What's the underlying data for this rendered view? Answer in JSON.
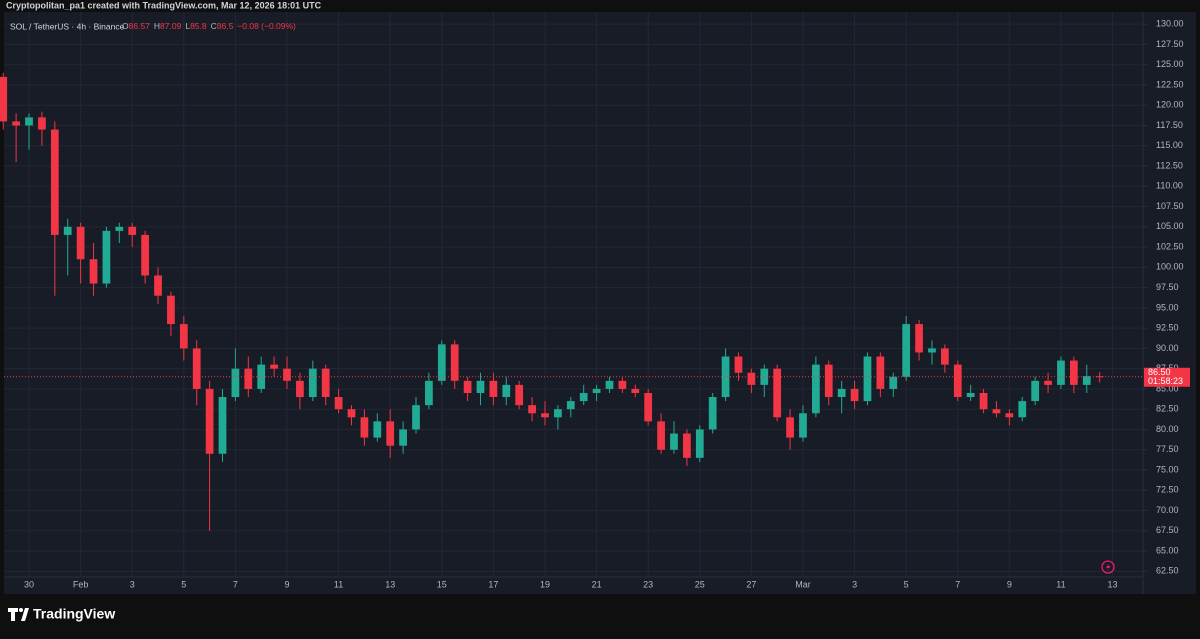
{
  "credit": "Cryptopolitan_pa1 created with TradingView.com, Mar 12, 2026 18:01 UTC",
  "brand": "TradingView",
  "chart_data": {
    "type": "candlestick",
    "title": "SOL / TetherUS · 4h · Binance",
    "legend": {
      "o_label": "O",
      "open": 86.57,
      "h_label": "H",
      "high": 87.09,
      "l_label": "L",
      "low": 85.8,
      "c_label": "C",
      "close": 86.5,
      "change": "−0.08 (−0.09%)"
    },
    "last_price": 86.5,
    "last_price_label": "86.50",
    "countdown": "01:58:23",
    "up_color": "#22ab94",
    "down_color": "#f23645",
    "grid": true,
    "xlim": [
      -0.25,
      88.36
    ],
    "xticks": [
      {
        "value": 2,
        "label": "30"
      },
      {
        "value": 6,
        "label": "Feb"
      },
      {
        "value": 10,
        "label": "3"
      },
      {
        "value": 14,
        "label": "5"
      },
      {
        "value": 18,
        "label": "7"
      },
      {
        "value": 22,
        "label": "9"
      },
      {
        "value": 26,
        "label": "11"
      },
      {
        "value": 30,
        "label": "13"
      },
      {
        "value": 34,
        "label": "15"
      },
      {
        "value": 38,
        "label": "17"
      },
      {
        "value": 42,
        "label": "19"
      },
      {
        "value": 46,
        "label": "21"
      },
      {
        "value": 50,
        "label": "23"
      },
      {
        "value": 54,
        "label": "25"
      },
      {
        "value": 58,
        "label": "27"
      },
      {
        "value": 62,
        "label": "Mar"
      },
      {
        "value": 66,
        "label": "3"
      },
      {
        "value": 70,
        "label": "5"
      },
      {
        "value": 74,
        "label": "7"
      },
      {
        "value": 78,
        "label": "9"
      },
      {
        "value": 82,
        "label": "11"
      },
      {
        "value": 86,
        "label": "13"
      }
    ],
    "ylim": [
      61.8,
      131.5
    ],
    "yticks": [
      {
        "value": 62.5,
        "label": "62.50"
      },
      {
        "value": 65,
        "label": "65.00"
      },
      {
        "value": 67.5,
        "label": "67.50"
      },
      {
        "value": 70,
        "label": "70.00"
      },
      {
        "value": 72.5,
        "label": "72.50"
      },
      {
        "value": 75,
        "label": "75.00"
      },
      {
        "value": 77.5,
        "label": "77.50"
      },
      {
        "value": 80,
        "label": "80.00"
      },
      {
        "value": 82.5,
        "label": "82.50"
      },
      {
        "value": 85,
        "label": "85.00"
      },
      {
        "value": 87.5,
        "label": "87.50"
      },
      {
        "value": 90,
        "label": "90.00"
      },
      {
        "value": 92.5,
        "label": "92.50"
      },
      {
        "value": 95,
        "label": "95.00"
      },
      {
        "value": 97.5,
        "label": "97.50"
      },
      {
        "value": 100,
        "label": "100.00"
      },
      {
        "value": 102.5,
        "label": "102.50"
      },
      {
        "value": 105,
        "label": "105.00"
      },
      {
        "value": 107.5,
        "label": "107.50"
      },
      {
        "value": 110,
        "label": "110.00"
      },
      {
        "value": 112.5,
        "label": "112.50"
      },
      {
        "value": 115,
        "label": "115.00"
      },
      {
        "value": 117.5,
        "label": "117.50"
      },
      {
        "value": 120,
        "label": "120.00"
      },
      {
        "value": 122.5,
        "label": "122.50"
      },
      {
        "value": 125,
        "label": "125.00"
      },
      {
        "value": 127.5,
        "label": "127.50"
      },
      {
        "value": 130,
        "label": "130.00"
      }
    ],
    "open": [
      123.5,
      118,
      117.5,
      118.5,
      117,
      104,
      105,
      101,
      98,
      104.5,
      105,
      104,
      99,
      96.5,
      93,
      90,
      85,
      77,
      84,
      87.5,
      85,
      88,
      87.5,
      86,
      84,
      87.5,
      84,
      82.5,
      81.5,
      79,
      81,
      78,
      80,
      83,
      86,
      90.5,
      86,
      84.5,
      86,
      84,
      85.5,
      83,
      82,
      81.5,
      82.5,
      83.5,
      84.5,
      85,
      86,
      85,
      84.5,
      81,
      77.5,
      79.5,
      76.5,
      80,
      84,
      89,
      87,
      85.5,
      87.5,
      81.5,
      79,
      82,
      88,
      84,
      85,
      83.5,
      89,
      85,
      86.5,
      93,
      89.5,
      90,
      88,
      84,
      84.5,
      82.5,
      82,
      81.5,
      83.5,
      86,
      85.5,
      88.5,
      85.5,
      86.57
    ],
    "high": [
      124,
      119,
      119,
      119.2,
      118,
      106,
      105.5,
      103,
      105,
      105.5,
      105.5,
      104.5,
      100,
      97,
      94,
      91,
      86,
      85,
      90,
      89,
      89,
      89,
      89,
      87,
      88.5,
      88,
      85,
      83,
      82.5,
      82,
      82.5,
      81,
      84,
      87,
      91,
      91,
      86.5,
      87,
      87,
      86.5,
      86,
      84,
      83.5,
      83,
      84,
      85.5,
      85.5,
      86.5,
      86.5,
      85.5,
      85,
      82,
      81,
      80,
      80.5,
      84.5,
      90,
      89.5,
      87.5,
      88,
      88,
      82.5,
      83,
      89,
      88.5,
      86,
      86,
      89.5,
      89.5,
      87,
      94,
      93.5,
      91,
      90.5,
      88.5,
      85.5,
      85,
      83.5,
      82.5,
      84,
      86.5,
      87,
      89,
      89,
      88,
      87.09
    ],
    "low": [
      117,
      113,
      114.5,
      115,
      96.5,
      99,
      98,
      96.5,
      97.5,
      103,
      102.5,
      98,
      95.5,
      91.5,
      88.5,
      83,
      67.5,
      76,
      83.5,
      84,
      84.5,
      86.5,
      85,
      82.5,
      83.5,
      83,
      82,
      80.5,
      78,
      78.5,
      76.5,
      77,
      79.5,
      82.5,
      85.5,
      85,
      83.5,
      83,
      83,
      83,
      82.5,
      81,
      80.5,
      80,
      81.5,
      83,
      83.5,
      84.5,
      84.5,
      84,
      80.5,
      77,
      77,
      75.5,
      76,
      79.5,
      83.5,
      86,
      84.5,
      84,
      81,
      77.5,
      78.5,
      81.5,
      83,
      82,
      82.5,
      83,
      84,
      84,
      86,
      88.5,
      88,
      87,
      83.5,
      83.5,
      82,
      81.5,
      80.5,
      81,
      83,
      84.5,
      85,
      84.5,
      84.5,
      85.8
    ],
    "close": [
      118,
      117.5,
      118.5,
      117,
      104,
      105,
      101,
      98,
      104.5,
      105,
      104,
      99,
      96.5,
      93,
      90,
      85,
      77,
      84,
      87.5,
      85,
      88,
      87.5,
      86,
      84,
      87.5,
      84,
      82.5,
      81.5,
      79,
      81,
      78,
      80,
      83,
      86,
      90.5,
      86,
      84.5,
      86,
      84,
      85.5,
      83,
      82,
      81.5,
      82.5,
      83.5,
      84.5,
      85,
      86,
      85,
      84.5,
      81,
      77.5,
      79.5,
      76.5,
      80,
      84,
      89,
      87,
      85.5,
      87.5,
      81.5,
      79,
      82,
      88,
      84,
      85,
      83.5,
      89,
      85,
      86.5,
      93,
      89.5,
      90,
      88,
      84,
      84.5,
      82.5,
      82,
      81.5,
      83.5,
      86,
      85.5,
      88.5,
      85.5,
      86.58,
      86.5
    ]
  }
}
